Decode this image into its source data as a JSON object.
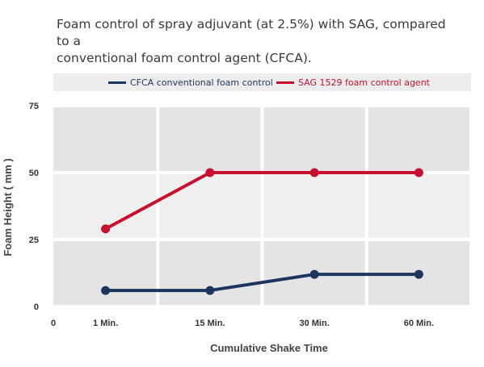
{
  "chart_data": {
    "type": "line",
    "title_lines": [
      "Foam control of spray adjuvant (at 2.5%) with SAG, compared to a",
      "conventional foam control agent (CFCA)."
    ],
    "xlabel": "Cumulative Shake Time",
    "ylabel": "Foam Height ( mm )",
    "x_origin_label": "0",
    "categories": [
      "1 Min.",
      "15 Min.",
      "30 Min.",
      "60 Min."
    ],
    "ylim": [
      0,
      75
    ],
    "yticks": [
      0,
      25,
      50,
      75
    ],
    "grid": true,
    "legend_position": "top",
    "series": [
      {
        "name": "CFCA conventional foam control",
        "color": "#1c355e",
        "values": [
          6,
          6,
          12,
          12
        ]
      },
      {
        "name": "SAG 1529 foam control agent",
        "color": "#c8102e",
        "values": [
          29,
          50,
          50,
          50
        ]
      }
    ]
  }
}
